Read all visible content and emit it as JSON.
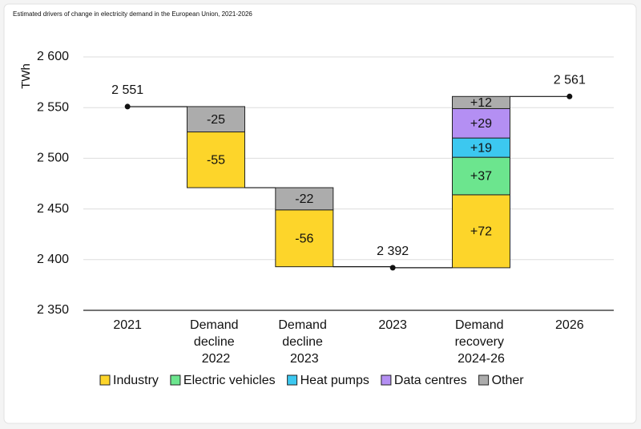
{
  "chart_data": {
    "type": "waterfall",
    "title": "Estimated drivers of change in electricity demand in the European Union, 2021-2026",
    "y_label": "TWh",
    "categories": [
      "2021",
      "Demand decline 2022",
      "Demand decline 2023",
      "2023",
      "Demand recovery 2024-26",
      "2026"
    ],
    "totals": [
      2551,
      null,
      null,
      2392,
      null,
      2561
    ],
    "total_labels": [
      "2 551",
      null,
      null,
      "2 392",
      null,
      "2 561"
    ],
    "series": [
      {
        "name": "Industry",
        "color": "#fdd52a",
        "values": [
          null,
          -55,
          -56,
          null,
          72,
          null
        ],
        "value_labels": [
          null,
          "-55",
          "-56",
          null,
          "+72",
          null
        ]
      },
      {
        "name": "Electric vehicles",
        "color": "#6ce58e",
        "values": [
          null,
          null,
          null,
          null,
          37,
          null
        ],
        "value_labels": [
          null,
          null,
          null,
          null,
          "+37",
          null
        ]
      },
      {
        "name": "Heat pumps",
        "color": "#3cc8f0",
        "values": [
          null,
          null,
          null,
          null,
          19,
          null
        ],
        "value_labels": [
          null,
          null,
          null,
          null,
          "+19",
          null
        ]
      },
      {
        "name": "Data centres",
        "color": "#b48ff3",
        "values": [
          null,
          null,
          null,
          null,
          29,
          null
        ],
        "value_labels": [
          null,
          null,
          null,
          null,
          "+29",
          null
        ]
      },
      {
        "name": "Other",
        "color": "#acacac",
        "values": [
          null,
          -25,
          -22,
          null,
          12,
          null
        ],
        "value_labels": [
          null,
          "-25",
          "-22",
          null,
          "+12",
          null
        ]
      }
    ],
    "ylim": [
      2350,
      2600
    ],
    "yticks": [
      {
        "value": 2350,
        "label": "2 350"
      },
      {
        "value": 2400,
        "label": "2 400"
      },
      {
        "value": 2450,
        "label": "2 450"
      },
      {
        "value": 2500,
        "label": "2 500"
      },
      {
        "value": 2550,
        "label": "2 550"
      },
      {
        "value": 2600,
        "label": "2 600"
      }
    ],
    "grid": true,
    "legend": "bottom"
  }
}
